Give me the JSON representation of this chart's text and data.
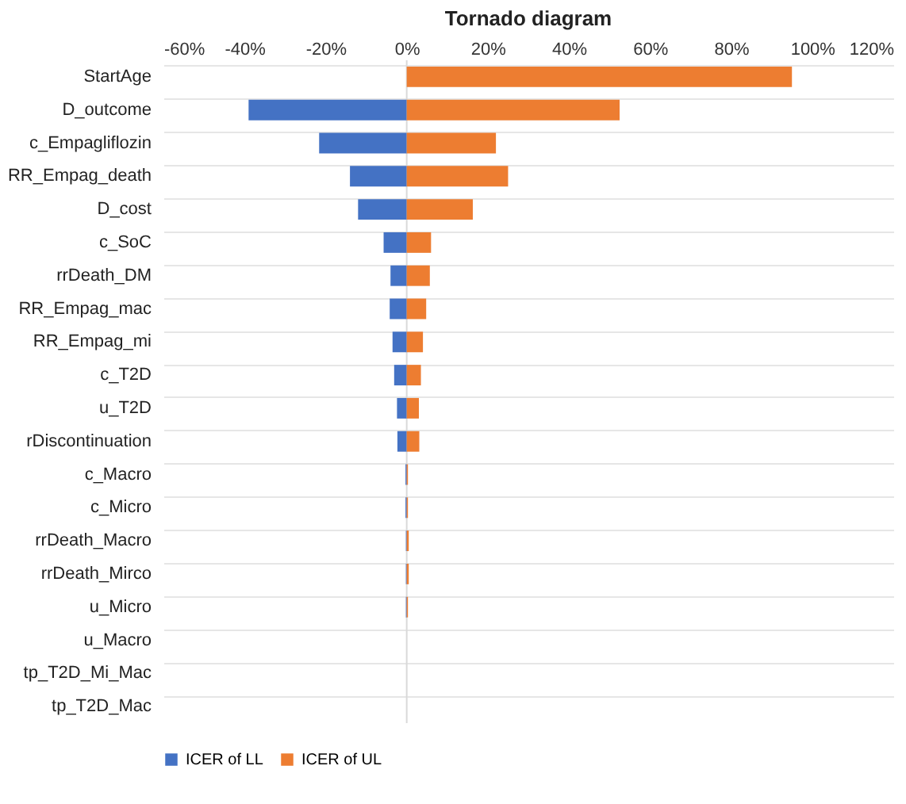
{
  "chart_data": {
    "type": "bar",
    "orientation": "horizontal",
    "title": "Tornado diagram",
    "categories": [
      "StartAge",
      "D_outcome",
      "c_Empagliflozin",
      "RR_Empag_death",
      "D_cost",
      "c_SoC",
      "rrDeath_DM",
      "RR_Empag_mac",
      "RR_Empag_mi",
      "c_T2D",
      "u_T2D",
      "rDiscontinuation",
      "c_Macro",
      "c_Micro",
      "rrDeath_Macro",
      "rrDeath_Mirco",
      "u_Micro",
      "u_Macro",
      "tp_T2D_Mi_Mac",
      "tp_T2D_Mac"
    ],
    "series": [
      {
        "name": "ICER of LL",
        "color": "#4472c4",
        "values": [
          0,
          -39,
          -21.6,
          -14,
          -12,
          -5.7,
          -4,
          -4.2,
          -3.5,
          -3.1,
          -2.4,
          -2.3,
          -0.3,
          -0.3,
          -0.2,
          -0.2,
          -0.2,
          0,
          0,
          0
        ]
      },
      {
        "name": "ICER of UL",
        "color": "#ed7d31",
        "values": [
          95,
          52.5,
          22,
          25,
          16.3,
          6,
          5.7,
          4.8,
          4,
          3.5,
          3,
          3.1,
          0.3,
          0.3,
          0.5,
          0.5,
          0.3,
          0,
          0,
          0
        ]
      }
    ],
    "xlim": [
      -60,
      120
    ],
    "xticks": [
      {
        "value": -60,
        "label": "-60%"
      },
      {
        "value": -40,
        "label": "-40%"
      },
      {
        "value": -20,
        "label": "-20%"
      },
      {
        "value": 0,
        "label": "0%"
      },
      {
        "value": 20,
        "label": "20%"
      },
      {
        "value": 40,
        "label": "40%"
      },
      {
        "value": 60,
        "label": "60%"
      },
      {
        "value": 80,
        "label": "80%"
      },
      {
        "value": 100,
        "label": "100%"
      },
      {
        "value": 120,
        "label": "120%"
      }
    ],
    "stacked": true,
    "grid": "y",
    "legend": "bottom"
  }
}
